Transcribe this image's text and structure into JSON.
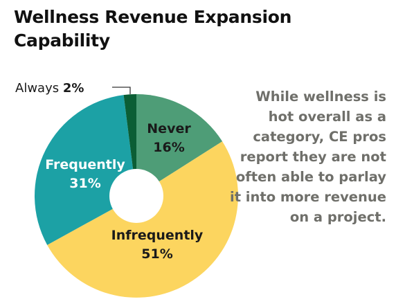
{
  "chart_data": {
    "type": "pie",
    "title": "Wellness Revenue Expansion Capability",
    "series": [
      {
        "slices": [
          {
            "label": "Never",
            "value": 16,
            "display": "16%",
            "color": "#4e9d77"
          },
          {
            "label": "Infrequently",
            "value": 51,
            "display": "51%",
            "color": "#fcd55f"
          },
          {
            "label": "Frequently",
            "value": 31,
            "display": "31%",
            "color": "#1ca1a5"
          },
          {
            "label": "Always",
            "value": 2,
            "display": "2%",
            "color": "#0b5e35"
          }
        ]
      }
    ],
    "donut": true
  },
  "annotation": "While wellness is hot overall as a category, CE pros report they are not often able to parlay it into more revenue on a project.",
  "colors": {
    "label_dark": "#1a1a1a",
    "label_light": "#ffffff",
    "annotation": "#6f6f6a"
  }
}
